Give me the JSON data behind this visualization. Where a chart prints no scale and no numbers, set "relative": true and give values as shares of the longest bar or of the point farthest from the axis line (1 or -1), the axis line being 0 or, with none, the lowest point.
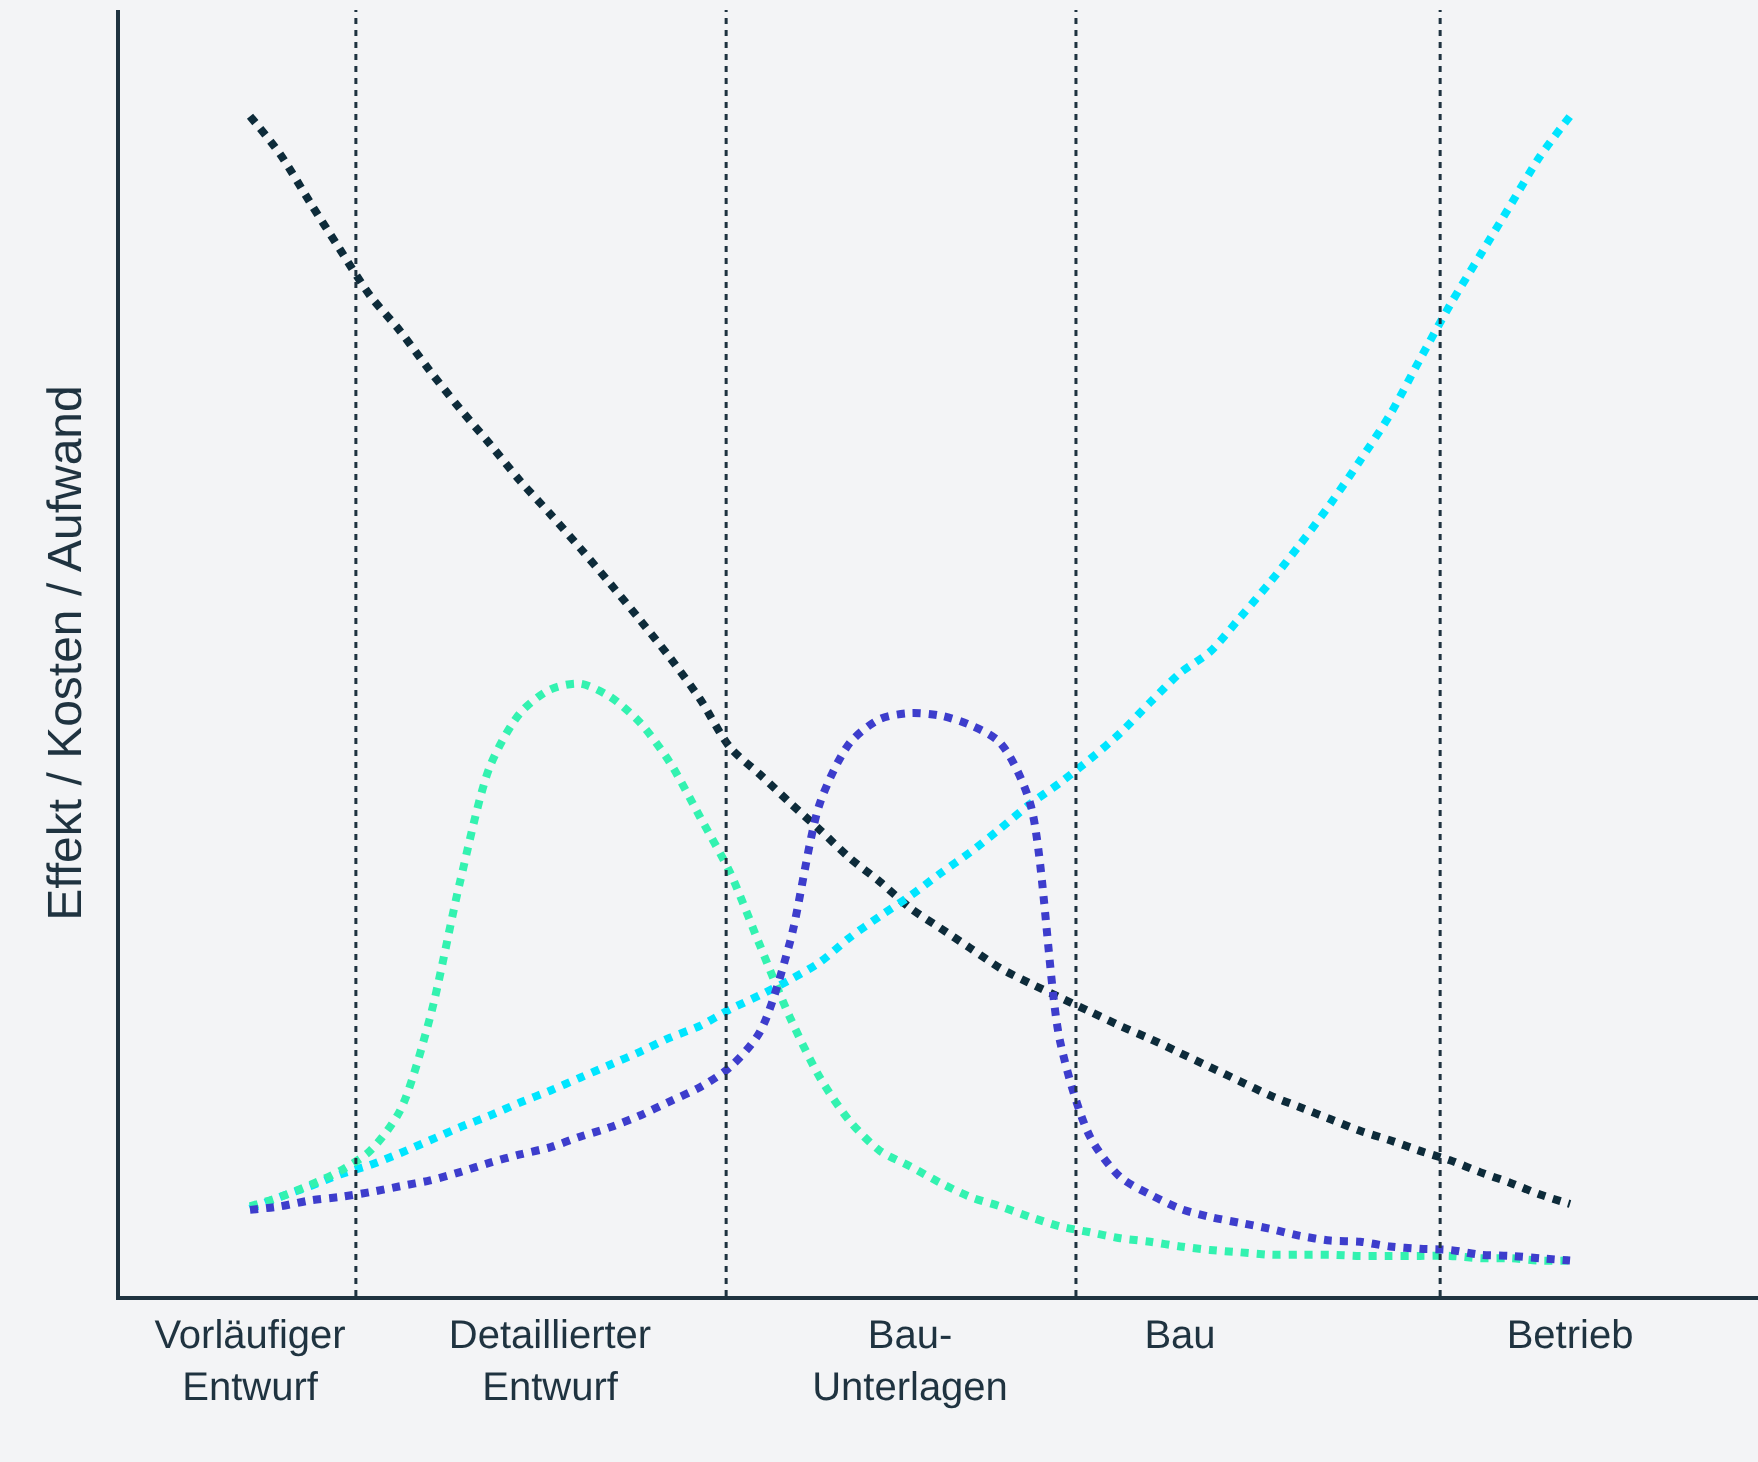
{
  "chart_data": {
    "type": "line",
    "ylabel": "Effekt / Kosten / Aufwand",
    "relative": true,
    "categories": [
      "Vorläufiger\nEntwurf",
      null,
      null,
      null,
      null,
      null,
      null,
      null,
      null,
      null,
      "Detaillierter\nEntwurf",
      null,
      null,
      null,
      null,
      null,
      null,
      null,
      null,
      null,
      null,
      null,
      "Bau-\nUnterlagen",
      null,
      null,
      null,
      null,
      null,
      null,
      null,
      null,
      "Bau",
      null,
      null,
      null,
      null,
      null,
      null,
      null,
      null,
      null,
      null,
      null,
      null,
      "Betrieb"
    ],
    "series": [
      {
        "color": "#0d2b3a",
        "values": [
          1,
          0.968,
          0.927,
          0.887,
          0.848,
          0.818,
          0.784,
          0.752,
          0.722,
          0.691,
          0.663,
          0.634,
          0.604,
          0.573,
          0.541,
          0.506,
          0.465,
          0.442,
          0.418,
          0.395,
          0.371,
          0.351,
          0.329,
          0.312,
          0.295,
          0.278,
          0.265,
          0.253,
          0.241,
          0.229,
          0.218,
          0.206,
          0.194,
          0.182,
          0.17,
          0.16,
          0.15,
          0.14,
          0.132,
          0.123,
          0.115,
          0.105,
          0.096,
          0.086,
          0.078
        ]
      },
      {
        "color": "#00e5ff",
        "values": [
          0.074,
          0.084,
          0.093,
          0.103,
          0.111,
          0.121,
          0.132,
          0.143,
          0.153,
          0.164,
          0.174,
          0.185,
          0.196,
          0.207,
          0.219,
          0.229,
          0.243,
          0.255,
          0.268,
          0.283,
          0.304,
          0.322,
          0.339,
          0.358,
          0.376,
          0.396,
          0.417,
          0.435,
          0.455,
          0.477,
          0.503,
          0.528,
          0.546,
          0.575,
          0.605,
          0.637,
          0.671,
          0.708,
          0.747,
          0.794,
          0.84,
          0.882,
          0.924,
          0.966,
          1
        ]
      },
      {
        "color": "#33f2b0",
        "values": [
          0.076,
          0.084,
          0.094,
          0.106,
          0.123,
          0.157,
          0.236,
          0.351,
          0.449,
          0.494,
          0.514,
          0.519,
          0.508,
          0.486,
          0.452,
          0.406,
          0.359,
          0.297,
          0.236,
          0.185,
          0.148,
          0.123,
          0.11,
          0.096,
          0.084,
          0.076,
          0.067,
          0.059,
          0.054,
          0.049,
          0.046,
          0.042,
          0.039,
          0.037,
          0.035,
          0.035,
          0.035,
          0.034,
          0.034,
          0.034,
          0.034,
          0.032,
          0.032,
          0.03,
          0.03
        ]
      },
      {
        "color": "#3d3dcc",
        "values": [
          0.073,
          0.076,
          0.081,
          0.084,
          0.088,
          0.093,
          0.098,
          0.105,
          0.113,
          0.12,
          0.126,
          0.135,
          0.143,
          0.153,
          0.165,
          0.177,
          0.194,
          0.224,
          0.3,
          0.418,
          0.469,
          0.489,
          0.494,
          0.492,
          0.484,
          0.469,
          0.418,
          0.216,
          0.135,
          0.101,
          0.086,
          0.074,
          0.067,
          0.062,
          0.057,
          0.051,
          0.047,
          0.046,
          0.042,
          0.04,
          0.039,
          0.035,
          0.034,
          0.032,
          0.03
        ]
      }
    ],
    "grid": false,
    "marker": "none",
    "line_style": "dotted"
  }
}
